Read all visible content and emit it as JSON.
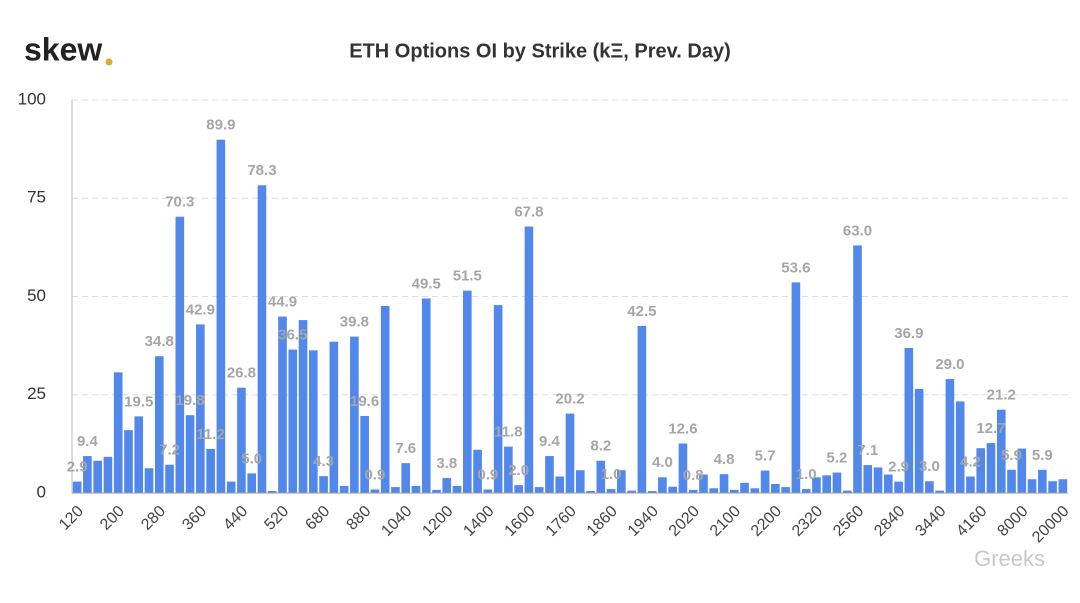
{
  "logo": "skew",
  "watermark": "Greeks",
  "chart_data": {
    "type": "bar",
    "title": "ETH Options OI by Strike (kΞ, Prev. Day)",
    "categories": [
      "120",
      null,
      null,
      null,
      "200",
      null,
      null,
      null,
      "280",
      null,
      null,
      null,
      "360",
      null,
      null,
      null,
      "440",
      null,
      null,
      null,
      "520",
      null,
      null,
      null,
      "680",
      null,
      null,
      null,
      "880",
      null,
      null,
      null,
      "1040",
      null,
      null,
      null,
      "1200",
      null,
      null,
      null,
      "1400",
      null,
      null,
      null,
      "1600",
      null,
      null,
      null,
      "1760",
      null,
      null,
      null,
      "1860",
      null,
      null,
      null,
      "1940",
      null,
      null,
      null,
      "2020",
      null,
      null,
      null,
      "2100",
      null,
      null,
      null,
      "2200",
      null,
      null,
      null,
      "2320",
      null,
      null,
      null,
      "2560",
      null,
      null,
      null,
      "2840",
      null,
      null,
      null,
      "3440",
      null,
      null,
      null,
      "4160",
      null,
      null,
      null,
      "8000",
      null,
      null,
      null,
      "20000"
    ],
    "values": [
      2.9,
      9.4,
      8.2,
      9.2,
      30.7,
      16,
      19.5,
      6.3,
      34.8,
      7.2,
      70.3,
      19.8,
      42.9,
      11.2,
      89.9,
      2.9,
      26.8,
      5.0,
      78.3,
      0.5,
      44.9,
      36.5,
      44,
      36.3,
      4.3,
      38.5,
      1.8,
      39.8,
      19.6,
      0.9,
      47.6,
      1.5,
      7.6,
      1.8,
      49.5,
      0.8,
      3.8,
      1.8,
      51.5,
      11.0,
      0.9,
      47.8,
      11.8,
      2.0,
      67.8,
      1.5,
      9.4,
      4.2,
      20.2,
      5.8,
      0.5,
      8.2,
      1.0,
      5.8,
      0.6,
      42.5,
      0.5,
      4.0,
      1.6,
      12.6,
      0.8,
      4.7,
      1.2,
      4.8,
      0.8,
      2.6,
      1.2,
      5.7,
      2.3,
      1.5,
      53.6,
      1.0,
      4.0,
      4.5,
      5.2,
      0.6,
      63.0,
      7.1,
      6.5,
      4.7,
      2.9,
      36.9,
      26.5,
      3.0,
      0.6,
      29.0,
      23.3,
      4.2,
      11.4,
      12.7,
      21.2,
      5.9,
      11.3,
      3.5,
      5.9,
      3.0,
      3.5
    ],
    "value_labels": [
      "2.9",
      "9.4",
      null,
      null,
      null,
      null,
      "19.5",
      null,
      "34.8",
      "7.2",
      "70.3",
      "19.8",
      "42.9",
      "11.2",
      "89.9",
      null,
      "26.8",
      "5.0",
      "78.3",
      null,
      "44.9",
      "36.5",
      null,
      null,
      "4.3",
      null,
      null,
      "39.8",
      "19.6",
      "0.9",
      null,
      null,
      "7.6",
      null,
      "49.5",
      null,
      "3.8",
      null,
      "51.5",
      null,
      "0.9",
      null,
      "11.8",
      "2.0",
      "67.8",
      null,
      "9.4",
      null,
      "20.2",
      null,
      null,
      "8.2",
      "1.0",
      null,
      null,
      "42.5",
      null,
      "4.0",
      null,
      "12.6",
      "0.8",
      null,
      null,
      "4.8",
      null,
      null,
      null,
      "5.7",
      null,
      null,
      "53.6",
      "1.0",
      null,
      null,
      "5.2",
      null,
      "63.0",
      "7.1",
      null,
      null,
      "2.9",
      "36.9",
      null,
      "3.0",
      null,
      "29.0",
      null,
      "4.2",
      null,
      "12.7",
      "21.2",
      "5.9",
      null,
      null,
      "5.9",
      null,
      null
    ],
    "color": "#5188ea",
    "ylim": [
      0,
      100
    ],
    "yticks": [
      0,
      25,
      50,
      75,
      100
    ],
    "grid": true
  }
}
